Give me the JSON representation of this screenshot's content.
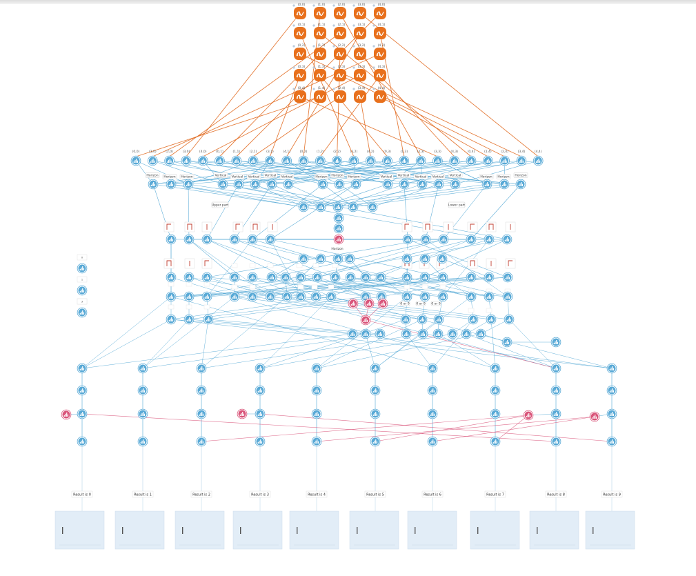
{
  "colors": {
    "orange_node": "#e8701c",
    "blue_node": "#58a9d6",
    "pink_node": "#d9557a",
    "orange_edge": "#e0661a",
    "blue_edge": "#4aa3d2",
    "pink_edge": "#d9557a",
    "panel_fill": "#e2edf7"
  },
  "icons": {
    "orange": "wave-icon",
    "blue": "histogram-icon",
    "pink": "histogram-icon"
  },
  "grid_labels": [
    "(0,0)",
    "(1,0)",
    "(2,0)",
    "(3,0)",
    "(4,0)",
    "(0,1)",
    "(1,1)",
    "(2,1)",
    "(3,1)",
    "(4,1)",
    "(0,2)",
    "(1,2)",
    "(2,2)",
    "(3,2)",
    "(4,2)",
    "(0,3)",
    "(1,3)",
    "(2,3)",
    "(3,3)",
    "(4,3)",
    "(0,4)",
    "(1,4)",
    "(2,4)",
    "(3,4)",
    "(4,4)"
  ],
  "input_labels": [
    "(0,0)",
    "(1,0)",
    "(2,0)",
    "(3,0)",
    "(4,0)",
    "(0,1)",
    "(1,1)",
    "(2,1)",
    "(3,1)",
    "(4,1)",
    "(0,2)",
    "(1,2)",
    "(2,2)",
    "(3,2)",
    "(4,2)",
    "(0,3)",
    "(1,3)",
    "(2,3)",
    "(3,3)",
    "(4,3)",
    "(0,4)",
    "(1,4)",
    "(2,4)",
    "(3,4)",
    "(4,4)"
  ],
  "direction_labels": [
    "Horizon",
    "Horizon",
    "Horizon",
    "Vertical",
    "Vertical",
    "Vertical",
    "Vertical",
    "Vertical",
    "Horizon",
    "Horizon",
    "Horizon",
    "Vertical",
    "Vertical",
    "Vertical",
    "Vertical",
    "Vertical",
    "Horizon",
    "Horizon",
    "Horizon"
  ],
  "part_labels": [
    "Upper part",
    "Lower part"
  ],
  "center_label": "Horizon",
  "or_labels": [
    "0 or 0",
    "0 or 0",
    "0 or 0"
  ],
  "legend_labels": [
    "0",
    "1",
    "2",
    "3"
  ],
  "result_labels": [
    "Result is 0",
    "Result is 1",
    "Result is 2",
    "Result is 3",
    "Result is 4",
    "Result is 5",
    "Result is 6",
    "Result is 7",
    "Result is 8",
    "Result is 9"
  ]
}
